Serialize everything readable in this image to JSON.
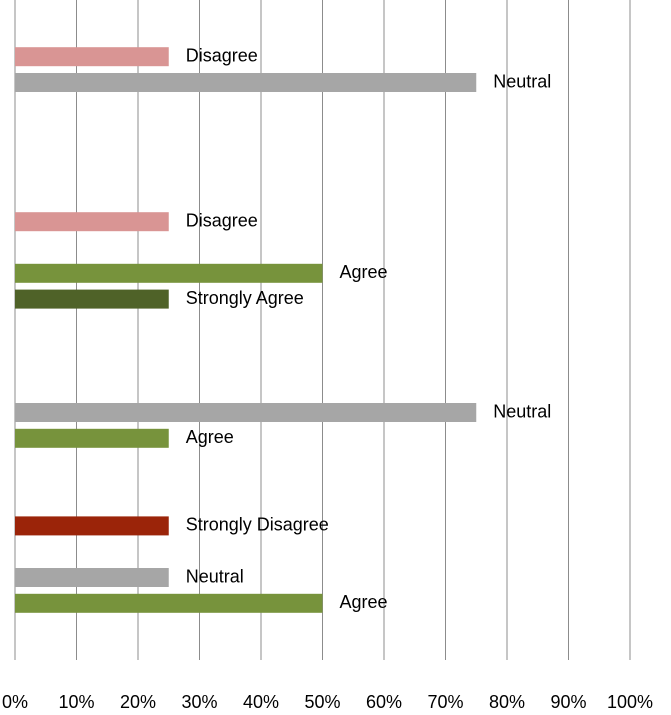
{
  "chart_data": {
    "type": "bar",
    "orientation": "horizontal",
    "categories": [
      null,
      null,
      null,
      null
    ],
    "series": [
      {
        "name": "Strongly Disagree",
        "color": "#9b2409",
        "values": [
          null,
          null,
          null,
          25
        ]
      },
      {
        "name": "Disagree",
        "color": "#d99594",
        "values": [
          25,
          25,
          null,
          null
        ]
      },
      {
        "name": "Neutral",
        "color": "#a6a6a6",
        "values": [
          75,
          null,
          75,
          25
        ]
      },
      {
        "name": "Agree",
        "color": "#77933c",
        "values": [
          null,
          50,
          25,
          50
        ]
      },
      {
        "name": "Strongly Agree",
        "color": "#4f6228",
        "values": [
          null,
          25,
          null,
          null
        ]
      }
    ],
    "xlim": [
      0,
      100
    ],
    "xticks": [
      {
        "value": 0,
        "label": "0%"
      },
      {
        "value": 10,
        "label": "10%"
      },
      {
        "value": 20,
        "label": "20%"
      },
      {
        "value": 30,
        "label": "30%"
      },
      {
        "value": 40,
        "label": "40%"
      },
      {
        "value": 50,
        "label": "50%"
      },
      {
        "value": 60,
        "label": "60%"
      },
      {
        "value": 70,
        "label": "70%"
      },
      {
        "value": 80,
        "label": "80%"
      },
      {
        "value": 90,
        "label": "90%"
      },
      {
        "value": 100,
        "label": "100%"
      }
    ],
    "grid": true
  }
}
